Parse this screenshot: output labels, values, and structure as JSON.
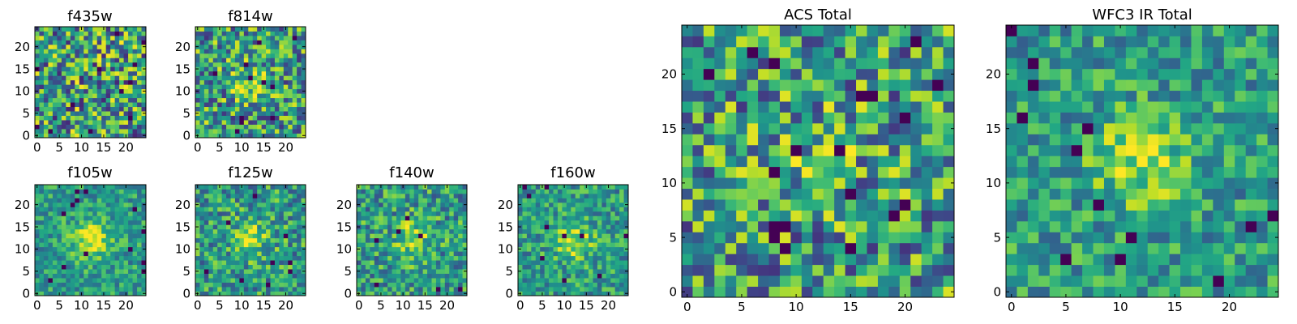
{
  "chart_data": [
    {
      "type": "heatmap",
      "title": "f435w",
      "xticks": [
        0,
        5,
        10,
        15,
        20
      ],
      "yticks": [
        0,
        5,
        10,
        15,
        20
      ],
      "xlim": [
        -0.5,
        24.5
      ],
      "ylim": [
        -0.5,
        24.5
      ],
      "grid_size": 25,
      "center_strength": 0.0,
      "noise": 0.9,
      "colormap": "viridis"
    },
    {
      "type": "heatmap",
      "title": "f814w",
      "xticks": [
        0,
        5,
        10,
        15,
        20
      ],
      "yticks": [
        0,
        5,
        10,
        15,
        20
      ],
      "xlim": [
        -0.5,
        24.5
      ],
      "ylim": [
        -0.5,
        24.5
      ],
      "grid_size": 25,
      "center_strength": 0.35,
      "noise": 0.8,
      "colormap": "viridis"
    },
    {
      "type": "heatmap",
      "title": "f105w",
      "xticks": [
        0,
        5,
        10,
        15,
        20
      ],
      "yticks": [
        0,
        5,
        10,
        15,
        20
      ],
      "xlim": [
        -0.5,
        24.5
      ],
      "ylim": [
        -0.5,
        24.5
      ],
      "grid_size": 25,
      "center_strength": 0.9,
      "noise": 0.45,
      "colormap": "viridis"
    },
    {
      "type": "heatmap",
      "title": "f125w",
      "xticks": [
        0,
        5,
        10,
        15,
        20
      ],
      "yticks": [
        0,
        5,
        10,
        15,
        20
      ],
      "xlim": [
        -0.5,
        24.5
      ],
      "ylim": [
        -0.5,
        24.5
      ],
      "grid_size": 25,
      "center_strength": 0.6,
      "noise": 0.6,
      "colormap": "viridis"
    },
    {
      "type": "heatmap",
      "title": "f140w",
      "xticks": [
        0,
        5,
        10,
        15,
        20
      ],
      "yticks": [
        0,
        5,
        10,
        15,
        20
      ],
      "xlim": [
        -0.5,
        24.5
      ],
      "ylim": [
        -0.5,
        24.5
      ],
      "grid_size": 25,
      "center_strength": 0.7,
      "noise": 0.6,
      "colormap": "viridis"
    },
    {
      "type": "heatmap",
      "title": "f160w",
      "xticks": [
        0,
        5,
        10,
        15,
        20
      ],
      "yticks": [
        0,
        5,
        10,
        15,
        20
      ],
      "xlim": [
        -0.5,
        24.5
      ],
      "ylim": [
        -0.5,
        24.5
      ],
      "grid_size": 25,
      "center_strength": 0.8,
      "noise": 0.5,
      "colormap": "viridis"
    },
    {
      "type": "heatmap",
      "title": "ACS Total",
      "xticks": [
        0,
        5,
        10,
        15,
        20
      ],
      "yticks": [
        0,
        5,
        10,
        15,
        20
      ],
      "xlim": [
        -0.5,
        24.5
      ],
      "ylim": [
        -0.5,
        24.5
      ],
      "grid_size": 25,
      "center_strength": 0.25,
      "noise": 0.8,
      "colormap": "viridis"
    },
    {
      "type": "heatmap",
      "title": "WFC3 IR Total",
      "xticks": [
        0,
        5,
        10,
        15,
        20
      ],
      "yticks": [
        0,
        5,
        10,
        15,
        20
      ],
      "xlim": [
        -0.5,
        24.5
      ],
      "ylim": [
        -0.5,
        24.5
      ],
      "grid_size": 25,
      "center_strength": 0.75,
      "noise": 0.5,
      "colormap": "viridis"
    }
  ]
}
